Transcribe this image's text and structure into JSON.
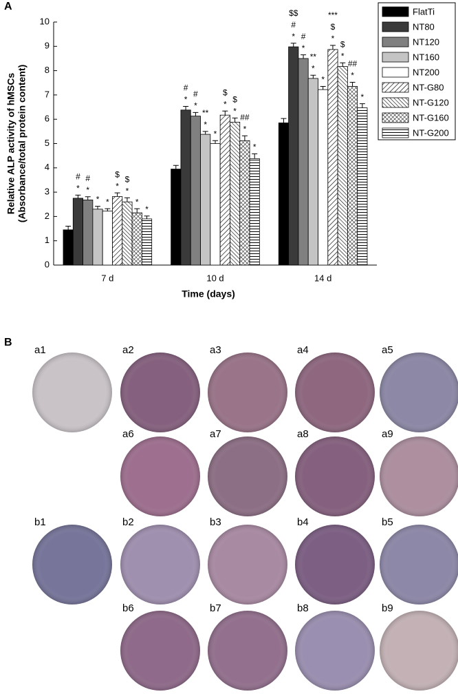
{
  "panel_a_label": "A",
  "chart_data": {
    "type": "bar",
    "y_label": [
      "Relative ALP activity of hMSCs",
      "(Absorbance/total protein content)"
    ],
    "x_label": "Time (days)",
    "categories": [
      "7 d",
      "10 d",
      "14 d"
    ],
    "ylim": [
      0,
      10
    ],
    "yticks": [
      0,
      1,
      2,
      3,
      4,
      5,
      6,
      7,
      8,
      9,
      10
    ],
    "legend": "top-right",
    "series": [
      {
        "name": "FlatTi",
        "color": "#000000",
        "pattern": "solid",
        "values": [
          1.45,
          3.95,
          5.85
        ],
        "errors": [
          0.15,
          0.15,
          0.18
        ],
        "annotations": [
          null,
          null,
          null
        ]
      },
      {
        "name": "NT80",
        "color": "#3a3a3a",
        "pattern": "solid",
        "values": [
          2.75,
          6.38,
          8.98
        ],
        "errors": [
          0.13,
          0.15,
          0.15
        ],
        "annotations": [
          [
            "#",
            "*"
          ],
          [
            "#",
            "*"
          ],
          [
            "$$",
            "#",
            "*"
          ]
        ]
      },
      {
        "name": "NT120",
        "color": "#808080",
        "pattern": "solid",
        "values": [
          2.68,
          6.13,
          8.5
        ],
        "errors": [
          0.13,
          0.15,
          0.15
        ],
        "annotations": [
          [
            "#",
            "*"
          ],
          [
            "#",
            "*"
          ],
          [
            "#",
            "*"
          ]
        ]
      },
      {
        "name": "NT160",
        "color": "#c4c4c4",
        "pattern": "solid",
        "values": [
          2.3,
          5.38,
          7.68
        ],
        "errors": [
          0.12,
          0.12,
          0.13
        ],
        "annotations": [
          [
            "*"
          ],
          [
            "**",
            "*"
          ],
          [
            "**",
            "*"
          ]
        ]
      },
      {
        "name": "NT200",
        "color": "#ffffff",
        "pattern": "solid",
        "values": [
          2.22,
          5.0,
          7.22
        ],
        "errors": [
          0.1,
          0.12,
          0.13
        ],
        "annotations": [
          [
            "*"
          ],
          [
            "*"
          ],
          [
            "*"
          ]
        ]
      },
      {
        "name": "NT-G80",
        "color": "#000000",
        "pattern": "diag",
        "values": [
          2.82,
          6.17,
          8.87
        ],
        "errors": [
          0.15,
          0.17,
          0.17
        ],
        "annotations": [
          [
            "$",
            "*"
          ],
          [
            "$",
            "*"
          ],
          [
            "***",
            "$",
            "*"
          ]
        ]
      },
      {
        "name": "NT-G120",
        "color": "#000000",
        "pattern": "backdiag",
        "values": [
          2.6,
          5.88,
          8.17
        ],
        "errors": [
          0.17,
          0.17,
          0.15
        ],
        "annotations": [
          [
            "$",
            "*"
          ],
          [
            "$",
            "*"
          ],
          [
            "$",
            "*"
          ]
        ]
      },
      {
        "name": "NT-G160",
        "color": "#000000",
        "pattern": "cross",
        "values": [
          2.15,
          5.12,
          7.35
        ],
        "errors": [
          0.17,
          0.2,
          0.17
        ],
        "annotations": [
          [
            "*"
          ],
          [
            "##",
            "*"
          ],
          [
            "##",
            "*"
          ]
        ]
      },
      {
        "name": "NT-G200",
        "color": "#000000",
        "pattern": "horiz",
        "values": [
          1.9,
          4.38,
          6.47
        ],
        "errors": [
          0.12,
          0.2,
          0.17
        ],
        "annotations": [
          [
            "*"
          ],
          [
            "*"
          ],
          [
            "*"
          ]
        ]
      }
    ]
  },
  "panel_b": {
    "label": "B",
    "images": [
      "a1",
      "a2",
      "a3",
      "a4",
      "a5",
      "a6",
      "a7",
      "a8",
      "a9",
      "b1",
      "b2",
      "b3",
      "b4",
      "b5",
      "b6",
      "b7",
      "b8",
      "b9"
    ]
  }
}
